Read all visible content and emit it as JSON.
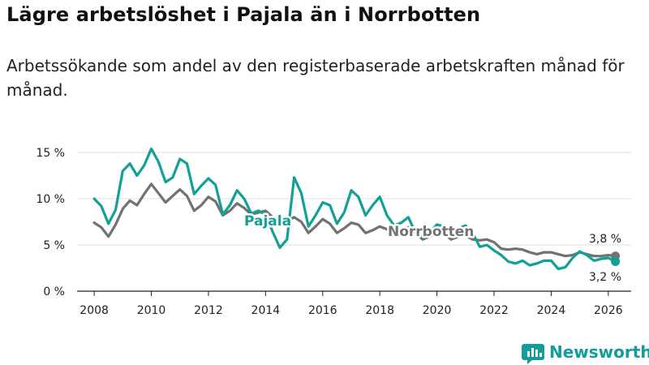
{
  "header": {
    "title": "Lägre arbetslöshet i Pajala än i Norrbotten",
    "subtitle": "Arbetssökande som andel av den registerbaserade arbetskraften månad för månad."
  },
  "colors": {
    "pajala": "#11a196",
    "norrbotten": "#727272",
    "axis": "#222222",
    "grid": "#e2e2e2",
    "brand": "#139c99"
  },
  "chart_data": {
    "type": "line",
    "title": "Lägre arbetslöshet i Pajala än i Norrbotten",
    "subtitle": "Arbetssökande som andel av den registerbaserade arbetskraften månad för månad.",
    "xlabel": "",
    "ylabel": "",
    "xlim": [
      2007.4,
      2026.8
    ],
    "ylim": [
      0,
      15
    ],
    "xticks": [
      2008,
      2010,
      2012,
      2014,
      2016,
      2018,
      2020,
      2022,
      2024,
      2026
    ],
    "xtick_labels": [
      "2008",
      "2010",
      "2012",
      "2014",
      "2016",
      "2018",
      "2020",
      "2022",
      "2024",
      "2026"
    ],
    "yticks": [
      0,
      5,
      10,
      15
    ],
    "ytick_labels": [
      "0 %",
      "5 %",
      "10 %",
      "15 %"
    ],
    "grid": true,
    "series": [
      {
        "name": "Pajala",
        "label": "Pajala",
        "end_label": "3,2 %",
        "x": [
          2008.0,
          2008.25,
          2008.5,
          2008.75,
          2009.0,
          2009.25,
          2009.5,
          2009.75,
          2010.0,
          2010.25,
          2010.5,
          2010.75,
          2011.0,
          2011.25,
          2011.5,
          2011.75,
          2012.0,
          2012.25,
          2012.5,
          2012.75,
          2013.0,
          2013.25,
          2013.5,
          2013.75,
          2014.0,
          2014.25,
          2014.5,
          2014.75,
          2015.0,
          2015.25,
          2015.5,
          2015.75,
          2016.0,
          2016.25,
          2016.5,
          2016.75,
          2017.0,
          2017.25,
          2017.5,
          2017.75,
          2018.0,
          2018.25,
          2018.5,
          2018.75,
          2019.0,
          2019.25,
          2019.5,
          2019.75,
          2020.0,
          2020.25,
          2020.5,
          2020.75,
          2021.0,
          2021.25,
          2021.5,
          2021.75,
          2022.0,
          2022.25,
          2022.5,
          2022.75,
          2023.0,
          2023.25,
          2023.5,
          2023.75,
          2024.0,
          2024.25,
          2024.5,
          2024.75,
          2025.0,
          2025.25,
          2025.5,
          2025.75,
          2026.0,
          2026.25
        ],
        "values": [
          10.0,
          9.2,
          7.3,
          8.8,
          13.0,
          13.8,
          12.5,
          13.6,
          15.4,
          14.0,
          11.8,
          12.3,
          14.3,
          13.8,
          10.5,
          11.4,
          12.2,
          11.5,
          8.3,
          9.3,
          10.9,
          10.0,
          8.4,
          8.7,
          8.3,
          6.4,
          4.7,
          5.6,
          12.3,
          10.6,
          7.0,
          8.2,
          9.6,
          9.3,
          7.3,
          8.5,
          10.9,
          10.2,
          8.2,
          9.3,
          10.2,
          8.2,
          7.1,
          7.4,
          8.0,
          6.3,
          5.8,
          6.4,
          7.2,
          7.0,
          6.4,
          6.8,
          7.1,
          6.3,
          4.8,
          5.0,
          4.4,
          3.9,
          3.2,
          3.0,
          3.3,
          2.8,
          3.0,
          3.3,
          3.3,
          2.4,
          2.6,
          3.6,
          4.3,
          3.9,
          3.3,
          3.5,
          3.6,
          3.2
        ]
      },
      {
        "name": "Norrbotten",
        "label": "Norrbotten",
        "end_label": "3,8 %",
        "x": [
          2008.0,
          2008.25,
          2008.5,
          2008.75,
          2009.0,
          2009.25,
          2009.5,
          2009.75,
          2010.0,
          2010.25,
          2010.5,
          2010.75,
          2011.0,
          2011.25,
          2011.5,
          2011.75,
          2012.0,
          2012.25,
          2012.5,
          2012.75,
          2013.0,
          2013.25,
          2013.5,
          2013.75,
          2014.0,
          2014.25,
          2014.5,
          2014.75,
          2015.0,
          2015.25,
          2015.5,
          2015.75,
          2016.0,
          2016.25,
          2016.5,
          2016.75,
          2017.0,
          2017.25,
          2017.5,
          2017.75,
          2018.0,
          2018.25,
          2018.5,
          2018.75,
          2019.0,
          2019.25,
          2019.5,
          2019.75,
          2020.0,
          2020.25,
          2020.5,
          2020.75,
          2021.0,
          2021.25,
          2021.5,
          2021.75,
          2022.0,
          2022.25,
          2022.5,
          2022.75,
          2023.0,
          2023.25,
          2023.5,
          2023.75,
          2024.0,
          2024.25,
          2024.5,
          2024.75,
          2025.0,
          2025.25,
          2025.5,
          2025.75,
          2026.0,
          2026.25
        ],
        "values": [
          7.4,
          6.9,
          5.9,
          7.2,
          8.9,
          9.8,
          9.3,
          10.5,
          11.6,
          10.6,
          9.6,
          10.3,
          11.0,
          10.3,
          8.7,
          9.3,
          10.2,
          9.7,
          8.2,
          8.7,
          9.5,
          9.0,
          8.3,
          8.5,
          8.7,
          8.0,
          7.3,
          7.6,
          8.0,
          7.5,
          6.3,
          7.0,
          7.8,
          7.3,
          6.3,
          6.8,
          7.4,
          7.2,
          6.3,
          6.6,
          7.0,
          6.7,
          6.0,
          6.2,
          6.9,
          6.3,
          5.6,
          5.9,
          6.3,
          6.2,
          5.6,
          5.9,
          6.0,
          5.6,
          5.5,
          5.6,
          5.3,
          4.6,
          4.5,
          4.6,
          4.5,
          4.2,
          4.0,
          4.2,
          4.2,
          4.0,
          3.8,
          3.9,
          4.2,
          4.0,
          3.8,
          3.8,
          3.9,
          3.8
        ]
      }
    ]
  },
  "brand": {
    "name": "Newsworthy",
    "logo_icon": "bar-chart-logo-icon"
  }
}
